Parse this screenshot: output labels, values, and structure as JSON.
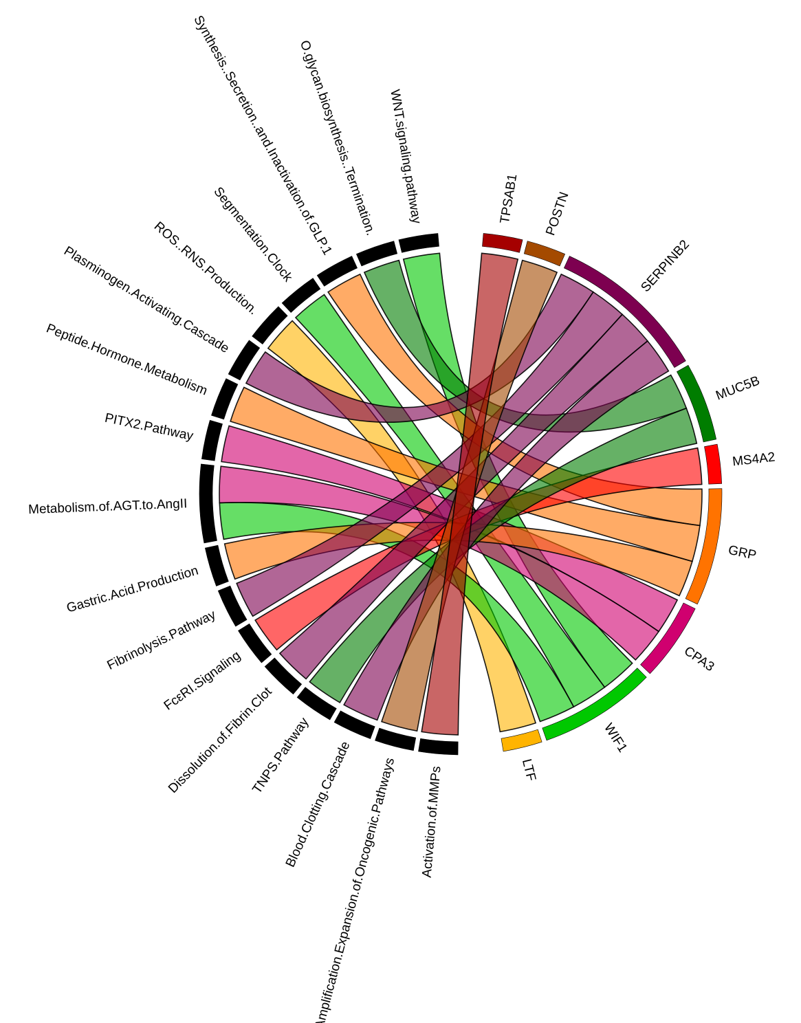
{
  "chart_data": {
    "type": "chord",
    "pathways": [
      "WNT.signaling.pathway",
      "O.glycan.biosynthesis..Termination.",
      "Synthesis..Secretion..and.Inactivation.of.GLP.1",
      "Segmentation.Clock",
      "ROS..RNS.Production.",
      "Plasminogen.Activating.Cascade",
      "Peptide.Hormone.Metabolism",
      "PITX2.Pathway",
      "Metabolism.of.AGT.to.AngII",
      "Gastric.Acid.Production",
      "Fibrinolysis.Pathway",
      "FcεRI.Signaling",
      "Dissolution.of.Fibrin.Clot",
      "TNPS.Pathway",
      "Blood.Clotting.Cascade",
      "Amplification.Expansion.of.Oncogenic.Pathways",
      "Activation.of.MMPs"
    ],
    "genes": [
      {
        "name": "TPSAB1",
        "color": "#a50000"
      },
      {
        "name": "POSTN",
        "color": "#a44a00"
      },
      {
        "name": "SERPINB2",
        "color": "#7d0050"
      },
      {
        "name": "MUC5B",
        "color": "#007d00"
      },
      {
        "name": "MS4A2",
        "color": "#ff0000"
      },
      {
        "name": "GRP",
        "color": "#ff7300"
      },
      {
        "name": "CPA3",
        "color": "#d0006f"
      },
      {
        "name": "WIF1",
        "color": "#00c800"
      },
      {
        "name": "LTF",
        "color": "#ffb400"
      }
    ],
    "pathway_sector_color": "#000000",
    "links": [
      {
        "pathway": "WNT.signaling.pathway",
        "gene": "WIF1",
        "value": 1
      },
      {
        "pathway": "O.glycan.biosynthesis..Termination.",
        "gene": "MUC5B",
        "value": 1
      },
      {
        "pathway": "Synthesis..Secretion..and.Inactivation.of.GLP.1",
        "gene": "GRP",
        "value": 1
      },
      {
        "pathway": "Segmentation.Clock",
        "gene": "WIF1",
        "value": 1
      },
      {
        "pathway": "ROS..RNS.Production.",
        "gene": "LTF",
        "value": 1
      },
      {
        "pathway": "Plasminogen.Activating.Cascade",
        "gene": "SERPINB2",
        "value": 1
      },
      {
        "pathway": "Peptide.Hormone.Metabolism",
        "gene": "GRP",
        "value": 1
      },
      {
        "pathway": "PITX2.Pathway",
        "gene": "CPA3",
        "value": 1
      },
      {
        "pathway": "Metabolism.of.AGT.to.AngII",
        "gene": "WIF1",
        "value": 1
      },
      {
        "pathway": "Metabolism.of.AGT.to.AngII",
        "gene": "CPA3",
        "value": 1
      },
      {
        "pathway": "Gastric.Acid.Production",
        "gene": "GRP",
        "value": 1
      },
      {
        "pathway": "Fibrinolysis.Pathway",
        "gene": "SERPINB2",
        "value": 1
      },
      {
        "pathway": "FcεRI.Signaling",
        "gene": "MS4A2",
        "value": 1
      },
      {
        "pathway": "Dissolution.of.Fibrin.Clot",
        "gene": "SERPINB2",
        "value": 1
      },
      {
        "pathway": "TNPS.Pathway",
        "gene": "MUC5B",
        "value": 1
      },
      {
        "pathway": "Blood.Clotting.Cascade",
        "gene": "SERPINB2",
        "value": 1
      },
      {
        "pathway": "Amplification.Expansion.of.Oncogenic.Pathways",
        "gene": "POSTN",
        "value": 1
      },
      {
        "pathway": "Activation.of.MMPs",
        "gene": "TPSAB1",
        "value": 1
      }
    ]
  }
}
